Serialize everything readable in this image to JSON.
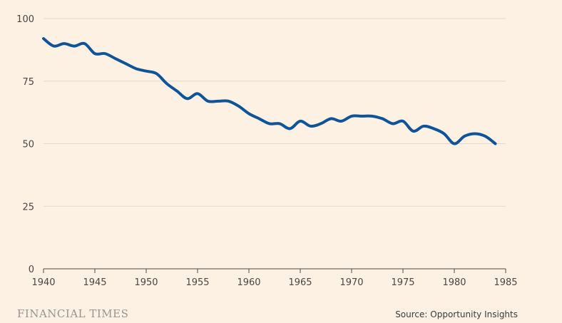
{
  "chart_data": {
    "type": "line",
    "title": "",
    "xlabel": "",
    "ylabel": "",
    "xlim": [
      1940,
      1985
    ],
    "ylim": [
      0,
      100
    ],
    "x_ticks": [
      1940,
      1945,
      1950,
      1955,
      1960,
      1965,
      1970,
      1975,
      1980,
      1985
    ],
    "y_ticks": [
      0,
      25,
      50,
      75,
      100
    ],
    "grid": "horizontal",
    "legend": "none",
    "series": [
      {
        "color": "#0f5499",
        "x": [
          1940,
          1941,
          1942,
          1943,
          1944,
          1945,
          1946,
          1947,
          1948,
          1949,
          1950,
          1951,
          1952,
          1953,
          1954,
          1955,
          1956,
          1957,
          1958,
          1959,
          1960,
          1961,
          1962,
          1963,
          1964,
          1965,
          1966,
          1967,
          1968,
          1969,
          1970,
          1971,
          1972,
          1973,
          1974,
          1975,
          1976,
          1977,
          1978,
          1979,
          1980,
          1981,
          1982,
          1983,
          1984
        ],
        "y": [
          92,
          89,
          90,
          89,
          90,
          86,
          86,
          84,
          82,
          80,
          79,
          78,
          74,
          71,
          68,
          70,
          67,
          67,
          67,
          65,
          62,
          60,
          58,
          58,
          56,
          59,
          57,
          58,
          60,
          59,
          61,
          61,
          61,
          60,
          58,
          59,
          55,
          57,
          56,
          54,
          50,
          53,
          54,
          53,
          50
        ]
      }
    ]
  },
  "footer": {
    "brand": "FINANCIAL TIMES",
    "source": "Source: Opportunity Insights"
  }
}
